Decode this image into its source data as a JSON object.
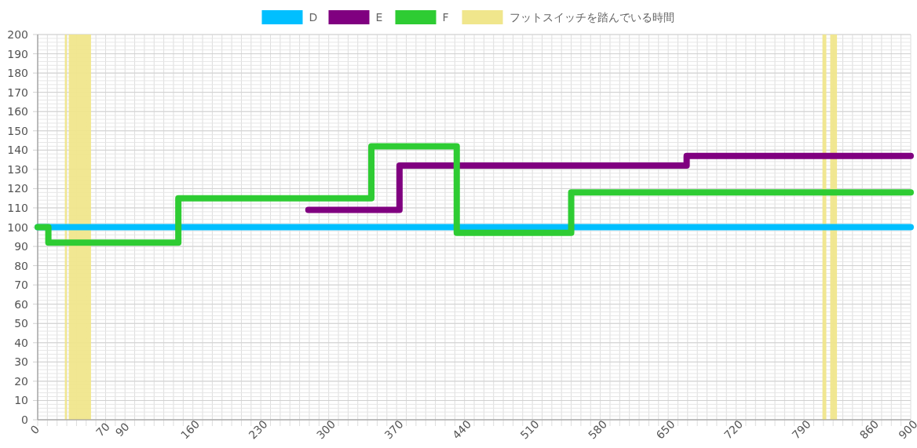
{
  "chart_data": {
    "type": "step",
    "series": [
      {
        "name": "D",
        "color": "#00bfff",
        "x": [
          0,
          900
        ],
        "values": [
          100,
          100
        ]
      },
      {
        "name": "E",
        "color": "#800080",
        "x": [
          279,
          373,
          669,
          900
        ],
        "values": [
          109,
          132,
          137,
          137
        ]
      },
      {
        "name": "F",
        "color": "#2ecc33",
        "x": [
          0,
          11,
          145,
          344,
          432,
          550,
          900
        ],
        "values": [
          100,
          92,
          115,
          142,
          97,
          118,
          118
        ]
      }
    ],
    "bands": [
      {
        "axis": "x",
        "from": 28,
        "to": 30,
        "label": "フットスイッチを踏んでいる時間",
        "color": "#f0e68c"
      },
      {
        "axis": "x",
        "from": 32,
        "to": 55,
        "color": "#f0e68c"
      },
      {
        "axis": "x",
        "from": 809,
        "to": 813,
        "color": "#f0e68c"
      },
      {
        "axis": "x",
        "from": 817,
        "to": 824,
        "color": "#f0e68c"
      }
    ],
    "xlim": [
      0,
      900
    ],
    "xticks": [
      0,
      70,
      90,
      160,
      230,
      300,
      370,
      440,
      510,
      580,
      650,
      720,
      790,
      860,
      900
    ],
    "ylim": [
      0,
      200
    ],
    "yticks": [
      0,
      10,
      20,
      30,
      40,
      50,
      60,
      70,
      80,
      90,
      100,
      110,
      120,
      130,
      140,
      150,
      160,
      170,
      180,
      190,
      200
    ],
    "grid": true,
    "legend": "top",
    "marker": "none",
    "line_style": "solid"
  }
}
